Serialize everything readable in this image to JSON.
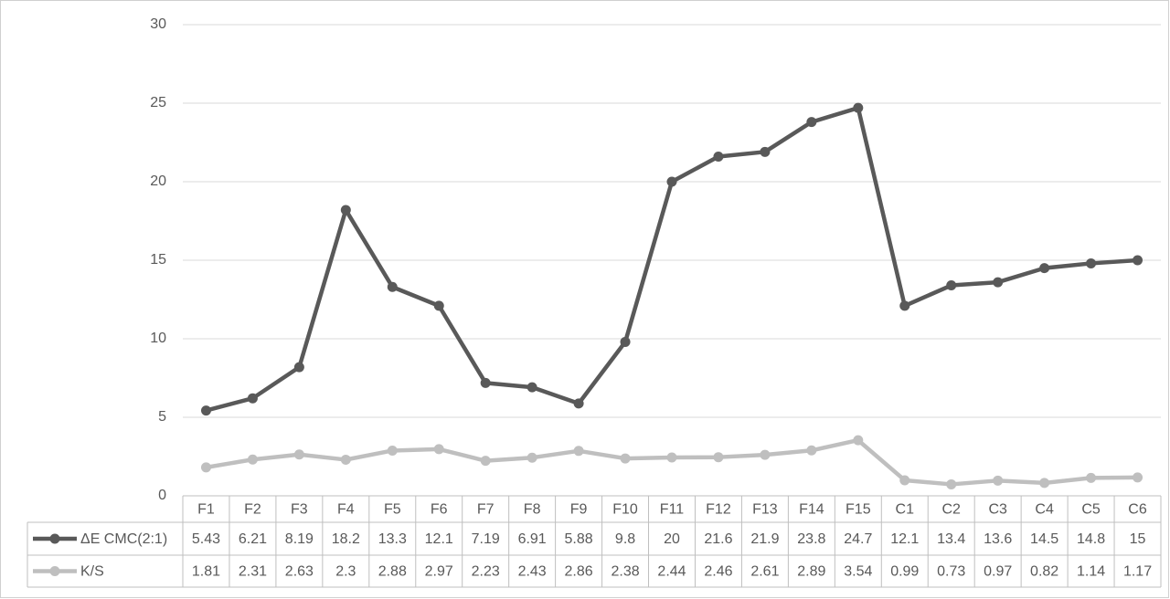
{
  "chart_data": {
    "type": "line",
    "categories": [
      "F1",
      "F2",
      "F3",
      "F4",
      "F5",
      "F6",
      "F7",
      "F8",
      "F9",
      "F10",
      "F11",
      "F12",
      "F13",
      "F14",
      "F15",
      "C1",
      "C2",
      "C3",
      "C4",
      "C5",
      "C6"
    ],
    "series": [
      {
        "name": "ΔE CMC(2:1)",
        "color": "#595959",
        "values": [
          5.43,
          6.21,
          8.19,
          18.2,
          13.3,
          12.1,
          7.19,
          6.91,
          5.88,
          9.8,
          20,
          21.6,
          21.9,
          23.8,
          24.7,
          12.1,
          13.4,
          13.6,
          14.5,
          14.8,
          15
        ]
      },
      {
        "name": "K/S",
        "color": "#bfbfbf",
        "values": [
          1.81,
          2.31,
          2.63,
          2.3,
          2.88,
          2.97,
          2.23,
          2.43,
          2.86,
          2.38,
          2.44,
          2.46,
          2.61,
          2.89,
          3.54,
          0.99,
          0.73,
          0.97,
          0.82,
          1.14,
          1.17
        ]
      }
    ],
    "ylim": [
      0,
      30
    ],
    "yticks": [
      0,
      5,
      10,
      15,
      20,
      25,
      30
    ],
    "grid": true,
    "data_table": true
  }
}
